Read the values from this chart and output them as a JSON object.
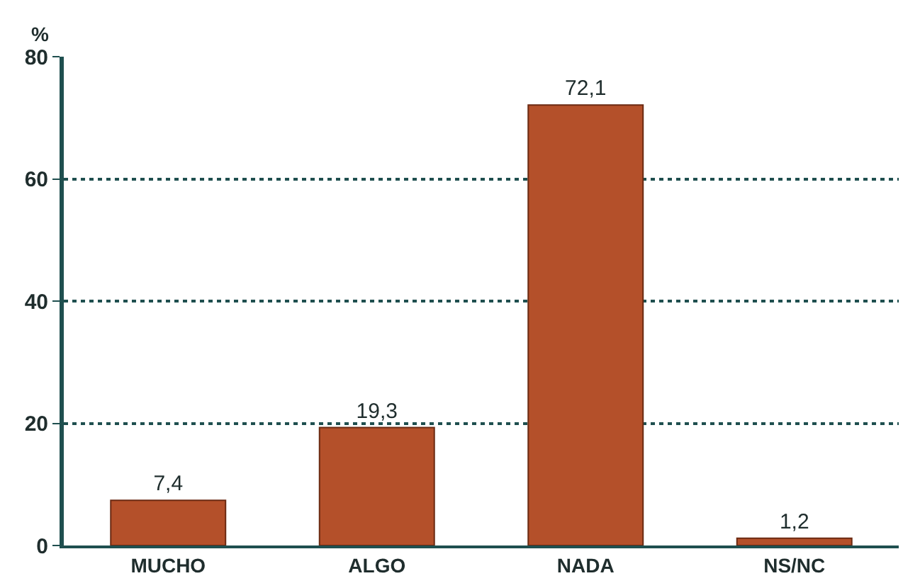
{
  "chart_data": {
    "type": "bar",
    "ylabel": "%",
    "categories": [
      "MUCHO",
      "ALGO",
      "NADA",
      "NS/NC"
    ],
    "values": [
      7.4,
      19.3,
      72.1,
      1.2
    ],
    "value_labels": [
      "7,4",
      "19,3",
      "72,1",
      "1,2"
    ],
    "color": "#b4502a",
    "ylim": [
      0,
      80
    ],
    "yticks": [
      0,
      20,
      40,
      60,
      80
    ],
    "grid": "y"
  }
}
